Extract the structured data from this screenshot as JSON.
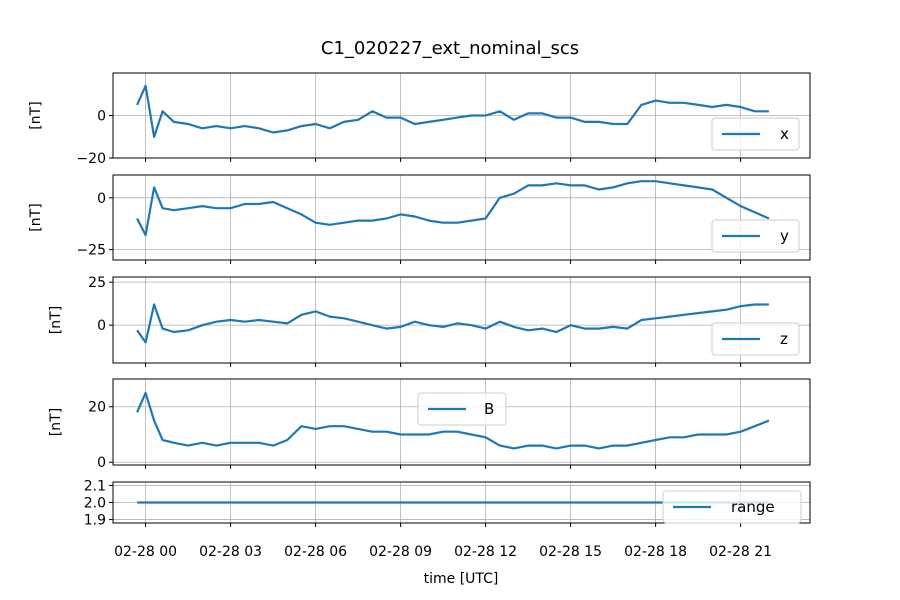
{
  "chart_data": {
    "type": "line",
    "title": "C1_020227_ext_nominal_scs",
    "xlabel": "time [UTC]",
    "x_tick_labels": [
      "02-28 00",
      "02-28 03",
      "02-28 06",
      "02-28 09",
      "02-28 12",
      "02-28 15",
      "02-28 18",
      "02-28 21"
    ],
    "x_tick_hours": [
      0,
      3,
      6,
      9,
      12,
      15,
      18,
      21
    ],
    "x_range_hours": [
      -1.15,
      23.45
    ],
    "data_range_hours": [
      -0.35,
      22.1
    ],
    "line_color": "#1f77b4",
    "grid": true,
    "panels": [
      {
        "series_name": "x",
        "ylabel": "[nT]",
        "ylim": [
          -20,
          20
        ],
        "yticks": [
          -20,
          0
        ],
        "ytick_labels": [
          "−20",
          "0"
        ],
        "legend": "right",
        "x": [
          -0.3,
          0.0,
          0.3,
          0.6,
          1.0,
          1.5,
          2.0,
          2.5,
          3.0,
          3.5,
          4.0,
          4.5,
          5.0,
          5.5,
          6.0,
          6.5,
          7.0,
          7.5,
          8.0,
          8.5,
          9.0,
          9.5,
          10.0,
          10.5,
          11.0,
          11.5,
          12.0,
          12.5,
          13.0,
          13.5,
          14.0,
          14.5,
          15.0,
          15.5,
          16.0,
          16.5,
          17.0,
          17.5,
          18.0,
          18.5,
          19.0,
          19.5,
          20.0,
          20.5,
          21.0,
          21.5,
          22.0
        ],
        "y": [
          5,
          14,
          -10,
          2,
          -3,
          -4,
          -6,
          -5,
          -6,
          -5,
          -6,
          -8,
          -7,
          -5,
          -4,
          -6,
          -3,
          -2,
          2,
          -1,
          -1,
          -4,
          -3,
          -2,
          -1,
          0,
          0,
          2,
          -2,
          1,
          1,
          -1,
          -1,
          -3,
          -3,
          -4,
          -4,
          5,
          7,
          6,
          6,
          5,
          4,
          5,
          4,
          2,
          2
        ]
      },
      {
        "series_name": "y",
        "ylabel": "[nT]",
        "ylim": [
          -30,
          11
        ],
        "yticks": [
          -25,
          0
        ],
        "ytick_labels": [
          "−25",
          "0"
        ],
        "legend": "right",
        "x": [
          -0.3,
          0.0,
          0.3,
          0.6,
          1.0,
          1.5,
          2.0,
          2.5,
          3.0,
          3.5,
          4.0,
          4.5,
          5.0,
          5.5,
          6.0,
          6.5,
          7.0,
          7.5,
          8.0,
          8.5,
          9.0,
          9.5,
          10.0,
          10.5,
          11.0,
          11.5,
          12.0,
          12.5,
          13.0,
          13.5,
          14.0,
          14.5,
          15.0,
          15.5,
          16.0,
          16.5,
          17.0,
          17.5,
          18.0,
          18.5,
          19.0,
          19.5,
          20.0,
          20.5,
          21.0,
          21.5,
          22.0
        ],
        "y": [
          -10,
          -18,
          5,
          -5,
          -6,
          -5,
          -4,
          -5,
          -5,
          -3,
          -3,
          -2,
          -5,
          -8,
          -12,
          -13,
          -12,
          -11,
          -11,
          -10,
          -8,
          -9,
          -11,
          -12,
          -12,
          -11,
          -10,
          0,
          2,
          6,
          6,
          7,
          6,
          6,
          4,
          5,
          7,
          8,
          8,
          7,
          6,
          5,
          4,
          0,
          -4,
          -7,
          -10
        ]
      },
      {
        "series_name": "z",
        "ylabel": "[nT]",
        "ylim": [
          -22,
          28
        ],
        "yticks": [
          0,
          25
        ],
        "ytick_labels": [
          "0",
          "25"
        ],
        "legend": "right",
        "x": [
          -0.3,
          0.0,
          0.3,
          0.6,
          1.0,
          1.5,
          2.0,
          2.5,
          3.0,
          3.5,
          4.0,
          4.5,
          5.0,
          5.5,
          6.0,
          6.5,
          7.0,
          7.5,
          8.0,
          8.5,
          9.0,
          9.5,
          10.0,
          10.5,
          11.0,
          11.5,
          12.0,
          12.5,
          13.0,
          13.5,
          14.0,
          14.5,
          15.0,
          15.5,
          16.0,
          16.5,
          17.0,
          17.5,
          18.0,
          18.5,
          19.0,
          19.5,
          20.0,
          20.5,
          21.0,
          21.5,
          22.0
        ],
        "y": [
          -3,
          -10,
          12,
          -2,
          -4,
          -3,
          0,
          2,
          3,
          2,
          3,
          2,
          1,
          6,
          8,
          5,
          4,
          2,
          0,
          -2,
          -1,
          2,
          0,
          -1,
          1,
          0,
          -2,
          2,
          -1,
          -3,
          -2,
          -4,
          0,
          -2,
          -2,
          -1,
          -2,
          3,
          4,
          5,
          6,
          7,
          8,
          9,
          11,
          12,
          12
        ]
      },
      {
        "series_name": "B",
        "ylabel": "[nT]",
        "ylim": [
          -1,
          30
        ],
        "yticks": [
          0,
          20
        ],
        "ytick_labels": [
          "0",
          "20"
        ],
        "legend": "upper center",
        "x": [
          -0.3,
          0.0,
          0.3,
          0.6,
          1.0,
          1.5,
          2.0,
          2.5,
          3.0,
          3.5,
          4.0,
          4.5,
          5.0,
          5.5,
          6.0,
          6.5,
          7.0,
          7.5,
          8.0,
          8.5,
          9.0,
          9.5,
          10.0,
          10.5,
          11.0,
          11.5,
          12.0,
          12.5,
          13.0,
          13.5,
          14.0,
          14.5,
          15.0,
          15.5,
          16.0,
          16.5,
          17.0,
          17.5,
          18.0,
          18.5,
          19.0,
          19.5,
          20.0,
          20.5,
          21.0,
          21.5,
          22.0
        ],
        "y": [
          18,
          25,
          15,
          8,
          7,
          6,
          7,
          6,
          7,
          7,
          7,
          6,
          8,
          13,
          12,
          13,
          13,
          12,
          11,
          11,
          10,
          10,
          10,
          11,
          11,
          10,
          9,
          6,
          5,
          6,
          6,
          5,
          6,
          6,
          5,
          6,
          6,
          7,
          8,
          9,
          9,
          10,
          10,
          10,
          11,
          13,
          15
        ]
      },
      {
        "series_name": "range",
        "ylabel": "",
        "ylim": [
          1.88,
          2.12
        ],
        "yticks": [
          1.9,
          2.0,
          2.1
        ],
        "ytick_labels": [
          "1.9",
          "2.0",
          "2.1"
        ],
        "legend": "lower right",
        "x": [
          -0.3,
          22.0
        ],
        "y": [
          2.0,
          2.0
        ]
      }
    ]
  }
}
